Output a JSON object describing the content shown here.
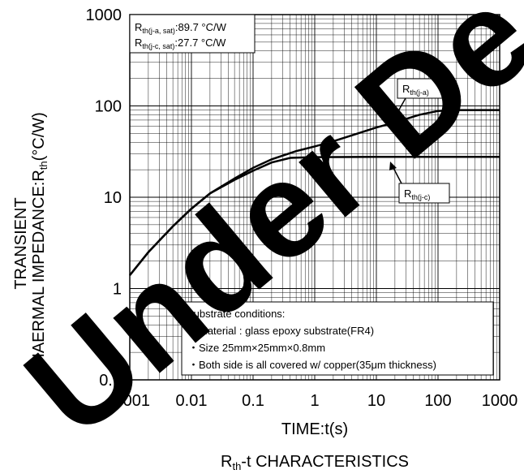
{
  "chart_data": {
    "type": "line",
    "title": "R",
    "title_sub": "th",
    "title_rest": "-t CHARACTERISTICS",
    "xlabel": "TIME:t(s)",
    "ylabel_line1": "TRANSIENT",
    "ylabel_line2": "THAERMAL IMPEDANCE:R",
    "ylabel_sub": "th",
    "ylabel_unit": "(°C/W)",
    "x_scale": "log",
    "y_scale": "log",
    "xlim": [
      0.001,
      1000
    ],
    "ylim": [
      0.1,
      1000
    ],
    "x_tick_labels": [
      "0.001",
      "0.01",
      "0.1",
      "1",
      "10",
      "100",
      "1000"
    ],
    "y_tick_labels": [
      "0.1",
      "1",
      "10",
      "100",
      "1000"
    ],
    "grid": true,
    "series": [
      {
        "name": "th(j-a)",
        "label_main": "R",
        "label_sub": "th(j-a)",
        "x": [
          0.001,
          0.002,
          0.005,
          0.01,
          0.02,
          0.05,
          0.1,
          0.2,
          0.5,
          1,
          2,
          5,
          10,
          20,
          50,
          100,
          200,
          500,
          1000
        ],
        "y": [
          1.4,
          2.5,
          4.8,
          7.5,
          11,
          16,
          21,
          26,
          32,
          36,
          41,
          50,
          58,
          66,
          80,
          88,
          90,
          90,
          90
        ]
      },
      {
        "name": "th(j-c)",
        "label_main": "R",
        "label_sub": "th(j-c)",
        "x": [
          0.001,
          0.002,
          0.005,
          0.01,
          0.02,
          0.05,
          0.1,
          0.2,
          0.4,
          1,
          10,
          100,
          1000
        ],
        "y": [
          1.4,
          2.5,
          4.8,
          7.5,
          11,
          15.5,
          19.5,
          24,
          27,
          27.5,
          27.7,
          27.7,
          27.7
        ]
      }
    ],
    "saturation_box": {
      "line1_main": "R",
      "line1_sub": "th(j-a, sat)",
      "line1_value": ":89.7  °C/W",
      "line2_main": "R",
      "line2_sub": "th(j-c, sat)",
      "line2_value": ":27.7  °C/W"
    },
    "substrate_box": {
      "heading": "Substrate conditions:",
      "items": [
        "・Material : glass epoxy substrate(FR4)",
        "・Size 25mm×25mm×0.8mm",
        "・Both side is all covered w/ copper(35μm thickness)"
      ]
    },
    "watermark": "Under De",
    "line_color": "#000000",
    "grid_color": "#000000",
    "watermark_color": "#000000"
  }
}
